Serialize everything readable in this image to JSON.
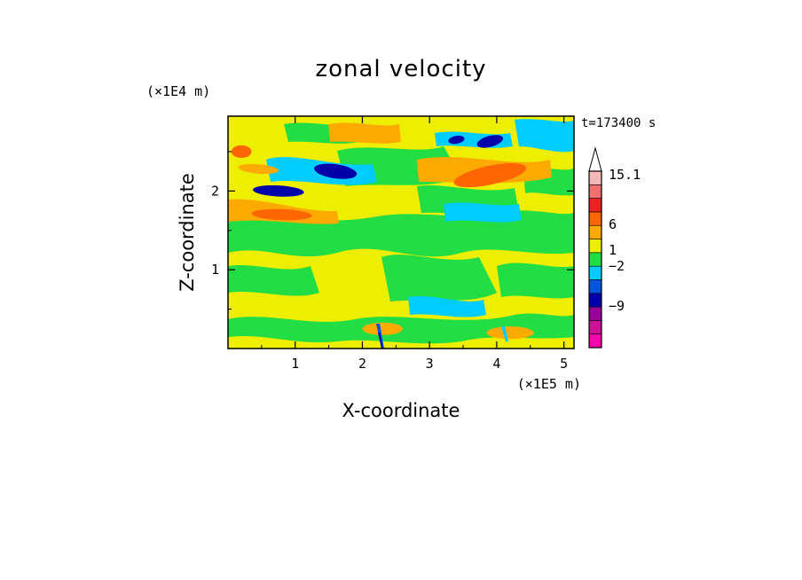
{
  "chart_data": {
    "type": "heatmap",
    "title": "zonal velocity",
    "xlabel": "X-coordinate",
    "ylabel": "Z-coordinate",
    "x_unit": "(×1E5 m)",
    "y_unit": "(×1E4 m)",
    "time_label": "t=173400 s",
    "xlim": [
      0,
      5.15
    ],
    "ylim": [
      0,
      2.95
    ],
    "x_ticks": [
      1,
      2,
      3,
      4,
      5
    ],
    "y_ticks": [
      1,
      2
    ],
    "colorbar": {
      "labels": [
        {
          "value": 15.1,
          "text": "15.1"
        },
        {
          "value": 6,
          "text": "6"
        },
        {
          "value": 1,
          "text": "1"
        },
        {
          "value": -2,
          "text": "−2"
        },
        {
          "value": -9,
          "text": "−9"
        }
      ],
      "bands": [
        {
          "color": "#ff00aa"
        },
        {
          "color": "#cc1199"
        },
        {
          "color": "#990099"
        },
        {
          "color": "#0000aa"
        },
        {
          "color": "#0055dd"
        },
        {
          "color": "#00ccff"
        },
        {
          "color": "#22dd44"
        },
        {
          "color": "#eeee00"
        },
        {
          "color": "#ffaa00"
        },
        {
          "color": "#ff6600"
        },
        {
          "color": "#ee2222"
        },
        {
          "color": "#f07070"
        },
        {
          "color": "#f4b8b8"
        }
      ],
      "extend_max_color": "#ffffff"
    },
    "features": [
      {
        "x": 0.75,
        "z": 2.0,
        "rx": 0.38,
        "rz": 0.07,
        "color": "#0000aa",
        "rot": 3
      },
      {
        "x": 1.6,
        "z": 2.25,
        "rx": 0.32,
        "rz": 0.09,
        "color": "#0000aa",
        "rot": 8
      },
      {
        "x": 3.4,
        "z": 2.65,
        "rx": 0.12,
        "rz": 0.05,
        "color": "#0000aa",
        "rot": -10
      },
      {
        "x": 3.9,
        "z": 2.63,
        "rx": 0.2,
        "rz": 0.07,
        "color": "#0000aa",
        "rot": -15
      },
      {
        "x": 0.8,
        "z": 1.7,
        "rx": 0.45,
        "rz": 0.07,
        "color": "#ff6600",
        "rot": 2
      },
      {
        "x": 0.45,
        "z": 2.28,
        "rx": 0.3,
        "rz": 0.06,
        "color": "#ffaa00",
        "rot": 5
      },
      {
        "x": 3.9,
        "z": 2.2,
        "rx": 0.55,
        "rz": 0.12,
        "color": "#ff6600",
        "rot": -12
      },
      {
        "x": 2.1,
        "z": 2.7,
        "rx": 0.35,
        "rz": 0.08,
        "color": "#ffaa00",
        "rot": -5
      },
      {
        "x": 0.2,
        "z": 2.5,
        "rx": 0.15,
        "rz": 0.08,
        "color": "#ff6600",
        "rot": 0
      },
      {
        "x": 2.3,
        "z": 0.25,
        "rx": 0.3,
        "rz": 0.08,
        "color": "#ffaa00",
        "rot": 0
      },
      {
        "x": 4.2,
        "z": 0.2,
        "rx": 0.35,
        "rz": 0.08,
        "color": "#ffaa00",
        "rot": 0
      }
    ]
  }
}
